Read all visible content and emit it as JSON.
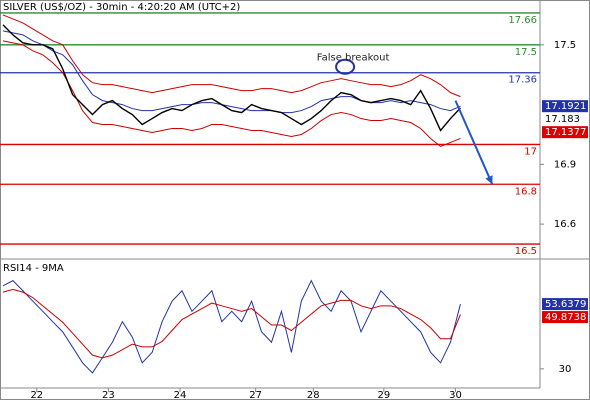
{
  "chart_data": [
    {
      "type": "line",
      "title": "SILVER (US$/OZ) - 30min - 4:20:20 AM (UTC+2)",
      "xlim": [
        0,
        54
      ],
      "ylim": [
        16.43,
        17.725
      ],
      "yticks": [
        17.5,
        16.9,
        16.6
      ],
      "series": [
        {
          "color": "#cc0000",
          "values": [
            17.65,
            17.63,
            17.61,
            17.58,
            17.55,
            17.52,
            17.5,
            17.42,
            17.35,
            17.31,
            17.3,
            17.3,
            17.29,
            17.28,
            17.27,
            17.26,
            17.27,
            17.28,
            17.29,
            17.3,
            17.3,
            17.3,
            17.29,
            17.28,
            17.27,
            17.27,
            17.28,
            17.28,
            17.27,
            17.26,
            17.27,
            17.29,
            17.31,
            17.32,
            17.33,
            17.32,
            17.31,
            17.3,
            17.3,
            17.29,
            17.3,
            17.32,
            17.35,
            17.33,
            17.3,
            17.26,
            17.24
          ]
        },
        {
          "color": "#cc0000",
          "values": [
            17.52,
            17.51,
            17.5,
            17.47,
            17.45,
            17.41,
            17.36,
            17.27,
            17.17,
            17.11,
            17.1,
            17.1,
            17.09,
            17.08,
            17.07,
            17.06,
            17.07,
            17.08,
            17.08,
            17.07,
            17.08,
            17.1,
            17.1,
            17.09,
            17.08,
            17.07,
            17.07,
            17.06,
            17.05,
            17.04,
            17.05,
            17.08,
            17.12,
            17.15,
            17.16,
            17.15,
            17.13,
            17.12,
            17.12,
            17.13,
            17.12,
            17.11,
            17.08,
            17.03,
            16.99,
            17.01,
            17.03
          ]
        },
        {
          "color": "#2233aa",
          "values": [
            17.57,
            17.56,
            17.55,
            17.52,
            17.5,
            17.47,
            17.45,
            17.4,
            17.32,
            17.25,
            17.22,
            17.21,
            17.2,
            17.18,
            17.17,
            17.17,
            17.18,
            17.19,
            17.2,
            17.2,
            17.21,
            17.21,
            17.2,
            17.19,
            17.18,
            17.17,
            17.17,
            17.17,
            17.16,
            17.16,
            17.17,
            17.19,
            17.22,
            17.23,
            17.24,
            17.24,
            17.22,
            17.21,
            17.21,
            17.22,
            17.21,
            17.22,
            17.21,
            17.2,
            17.18,
            17.17,
            17.1921
          ]
        },
        {
          "color": "#000000",
          "values": [
            17.6,
            17.55,
            17.51,
            17.5,
            17.5,
            17.48,
            17.38,
            17.25,
            17.2,
            17.15,
            17.2,
            17.22,
            17.18,
            17.15,
            17.1,
            17.13,
            17.16,
            17.18,
            17.17,
            17.2,
            17.22,
            17.23,
            17.2,
            17.17,
            17.16,
            17.2,
            17.18,
            17.17,
            17.16,
            17.13,
            17.1,
            17.13,
            17.17,
            17.22,
            17.26,
            17.25,
            17.22,
            17.21,
            17.22,
            17.23,
            17.22,
            17.2,
            17.27,
            17.18,
            17.07,
            17.13,
            17.183
          ]
        }
      ],
      "levels": [
        {
          "value": 17.66,
          "color": "#2e8b2e"
        },
        {
          "value": 17.5,
          "color": "#2e8b2e"
        },
        {
          "value": 17.36,
          "color": "#2233aa"
        },
        {
          "value": 17,
          "color": "#dd0000"
        },
        {
          "value": 16.8,
          "color": "#dd0000"
        },
        {
          "value": 16.5,
          "color": "#dd0000"
        }
      ],
      "markers": [
        {
          "value": 17.1921,
          "color": "#2233aa",
          "text_color": "#ffffff"
        },
        {
          "value": 17.183,
          "color": "#ffffff",
          "text_color": "#000000"
        },
        {
          "value": 17.1377,
          "color": "#dd0000",
          "text_color": "#ffffff"
        }
      ],
      "annotation": {
        "text": "False breakout",
        "x": 34.4,
        "y": 17.39,
        "color": "#2233aa"
      },
      "arrow": {
        "x": [
          45.5,
          49.2
        ],
        "y": [
          17.22,
          16.8
        ],
        "color": "#2255cc"
      }
    },
    {
      "type": "line",
      "title": "RSI14 - 9MA",
      "xlim": [
        0,
        54
      ],
      "ylim": [
        23,
        69
      ],
      "yticks": [
        30
      ],
      "xticks": [
        {
          "value": 3.4,
          "label": "22"
        },
        {
          "value": 10.6,
          "label": "23"
        },
        {
          "value": 17.8,
          "label": "24"
        },
        {
          "value": 25.4,
          "label": "27"
        },
        {
          "value": 31.2,
          "label": "28"
        },
        {
          "value": 38.3,
          "label": "29"
        },
        {
          "value": 45.5,
          "label": "30"
        }
      ],
      "series": [
        {
          "color": "#2233aa",
          "values": [
            60.3,
            62.2,
            58.5,
            54.7,
            51.0,
            47.2,
            43.5,
            37.9,
            32.2,
            28.5,
            34.1,
            39.7,
            47.2,
            41.6,
            32.2,
            36.0,
            47.2,
            54.7,
            58.5,
            51.0,
            54.7,
            58.5,
            47.2,
            51.0,
            47.2,
            54.7,
            43.5,
            39.7,
            51.0,
            36.0,
            54.7,
            62.2,
            54.7,
            51.0,
            58.5,
            54.7,
            43.5,
            51.0,
            58.5,
            54.7,
            51.0,
            47.2,
            43.5,
            36.0,
            32.2,
            39.7,
            53.6379
          ]
        },
        {
          "color": "#cc0000",
          "values": [
            58,
            59,
            58,
            56,
            53,
            50,
            47,
            43,
            39,
            35,
            34,
            35,
            37,
            39,
            38,
            38,
            40,
            44,
            48,
            50,
            52,
            54,
            53,
            52,
            51,
            52,
            49,
            46,
            46,
            44,
            47,
            50,
            53,
            54,
            55,
            55,
            53,
            52,
            53,
            53,
            52,
            50,
            48,
            45,
            41,
            41,
            49.8738
          ]
        }
      ],
      "markers": [
        {
          "value": 53.6379,
          "color": "#2233aa",
          "text_color": "#ffffff"
        },
        {
          "value": 49.8738,
          "color": "#dd0000",
          "text_color": "#ffffff"
        }
      ]
    }
  ]
}
